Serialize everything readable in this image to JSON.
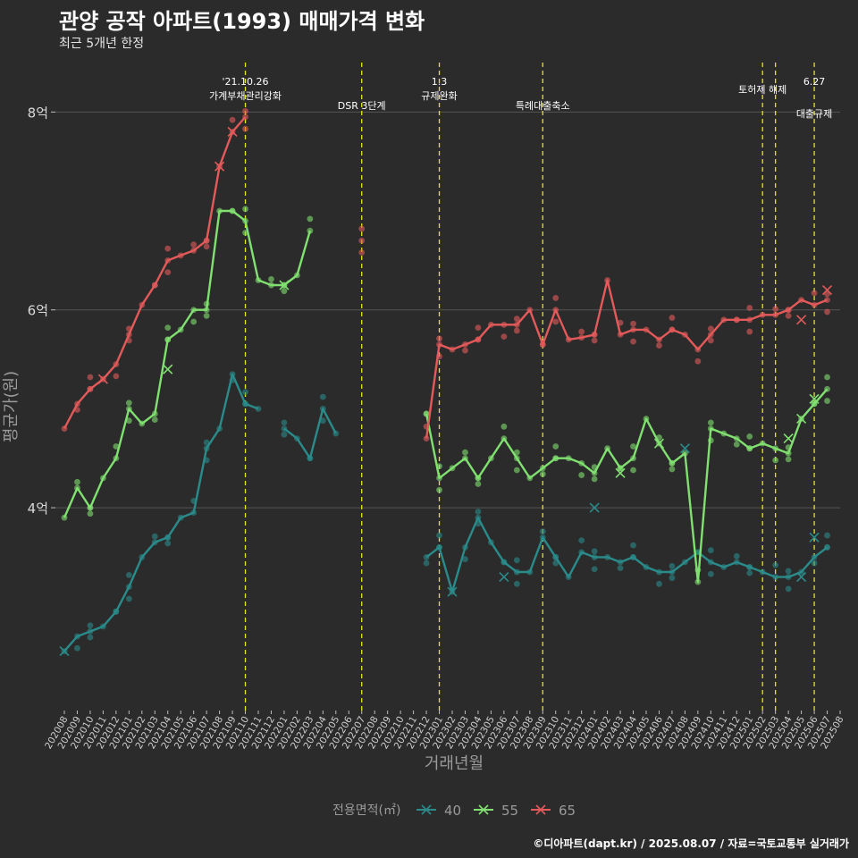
{
  "title": "관양 공작 아파트(1993) 매매가격 변화",
  "subtitle": "최근 5개년 한정",
  "caption": "©디아파트(dapt.kr) / 2025.08.07 / 자료=국토교통부 실거래가",
  "colors": {
    "background": "#2b2b2b",
    "grid": "#555555",
    "event_line": "#e6e619",
    "s40": "#2a8b8b",
    "s55": "#80e070",
    "s65": "#e45a5a"
  },
  "chart_data": {
    "type": "line",
    "xlabel": "거래년월",
    "ylabel": "평균가(원)",
    "ylim": [
      1.95,
      8.5
    ],
    "yticks": [
      {
        "v": 4,
        "label": "4억"
      },
      {
        "v": 6,
        "label": "6억"
      },
      {
        "v": 8,
        "label": "8억"
      }
    ],
    "x": [
      "202008",
      "202009",
      "202010",
      "202011",
      "202012",
      "202101",
      "202102",
      "202103",
      "202104",
      "202105",
      "202106",
      "202107",
      "202108",
      "202109",
      "202110",
      "202111",
      "202112",
      "202201",
      "202202",
      "202203",
      "202204",
      "202205",
      "202206",
      "202207",
      "202208",
      "202209",
      "202210",
      "202211",
      "202212",
      "202301",
      "202302",
      "202303",
      "202304",
      "202305",
      "202306",
      "202307",
      "202308",
      "202309",
      "202310",
      "202311",
      "202312",
      "202401",
      "202402",
      "202403",
      "202404",
      "202405",
      "202406",
      "202407",
      "202408",
      "202409",
      "202410",
      "202411",
      "202412",
      "202501",
      "202502",
      "202503",
      "202504",
      "202505",
      "202506",
      "202507",
      "202508"
    ],
    "legend_title": "전용면적(㎡)",
    "legend_position": "bottom",
    "series": [
      {
        "name": "40",
        "color_key": "s40",
        "values": [
          2.55,
          2.7,
          2.75,
          2.8,
          2.95,
          3.2,
          3.5,
          3.65,
          3.7,
          3.9,
          3.95,
          4.6,
          4.8,
          5.35,
          5.05,
          5.0,
          null,
          4.8,
          4.7,
          4.5,
          5.0,
          4.75,
          null,
          null,
          null,
          null,
          null,
          null,
          3.5,
          3.6,
          3.15,
          3.6,
          3.9,
          3.65,
          3.45,
          3.35,
          3.35,
          3.7,
          3.5,
          3.3,
          3.55,
          3.5,
          3.5,
          3.45,
          3.5,
          3.4,
          3.35,
          3.35,
          3.45,
          3.55,
          3.45,
          3.4,
          3.45,
          3.4,
          3.35,
          3.3,
          3.3,
          3.35,
          3.5,
          3.6,
          null
        ]
      },
      {
        "name": "55",
        "color_key": "s55",
        "values": [
          3.9,
          4.2,
          4.0,
          4.3,
          4.5,
          5.0,
          4.85,
          4.95,
          5.7,
          5.8,
          6.0,
          6.0,
          7.0,
          7.0,
          6.9,
          6.3,
          6.25,
          6.25,
          6.35,
          6.8,
          null,
          null,
          null,
          null,
          null,
          null,
          null,
          null,
          4.95,
          4.3,
          4.4,
          4.5,
          4.3,
          4.5,
          4.7,
          4.5,
          4.3,
          4.4,
          4.5,
          4.5,
          4.45,
          4.35,
          4.6,
          4.4,
          4.5,
          4.9,
          4.65,
          4.45,
          4.55,
          3.25,
          4.8,
          4.75,
          4.7,
          4.6,
          4.65,
          4.6,
          4.55,
          4.9,
          5.05,
          5.2,
          null
        ]
      },
      {
        "name": "65",
        "color_key": "s65",
        "values": [
          4.8,
          5.05,
          5.2,
          5.3,
          5.45,
          5.75,
          6.05,
          6.25,
          6.5,
          6.55,
          6.6,
          6.7,
          7.45,
          7.8,
          7.95,
          null,
          null,
          null,
          null,
          null,
          null,
          null,
          null,
          6.7,
          null,
          null,
          null,
          null,
          4.7,
          5.65,
          5.6,
          5.65,
          5.7,
          5.85,
          5.85,
          5.85,
          6.0,
          5.65,
          6.0,
          5.7,
          5.72,
          5.75,
          6.3,
          5.75,
          5.8,
          5.8,
          5.7,
          5.8,
          5.75,
          5.6,
          5.75,
          5.9,
          5.9,
          5.9,
          5.95,
          5.95,
          6.0,
          6.1,
          6.05,
          6.1,
          null
        ]
      }
    ],
    "events": [
      {
        "x": "202110",
        "label1": "'21.10.26",
        "label2": "가계부채관리강화"
      },
      {
        "x": "202207",
        "label1": "",
        "label2": "DSR 3단계"
      },
      {
        "x": "202301",
        "label1": "1.3",
        "label2": "규제완화"
      },
      {
        "x": "202309",
        "label1": "",
        "label2": "특례대출축소"
      },
      {
        "x": "202502",
        "label1": "토허제 해제",
        "label2": ""
      },
      {
        "x": "202503",
        "label1": "",
        "label2": ""
      },
      {
        "x": "202506",
        "label1": "6.27",
        "label2": "대출규제"
      }
    ],
    "crosses": [
      {
        "series": "40",
        "x": "202008",
        "y": 2.55
      },
      {
        "series": "40",
        "x": "202302",
        "y": 3.15
      },
      {
        "series": "40",
        "x": "202306",
        "y": 3.3
      },
      {
        "series": "40",
        "x": "202401",
        "y": 4.0
      },
      {
        "series": "40",
        "x": "202408",
        "y": 4.6
      },
      {
        "series": "40",
        "x": "202505",
        "y": 3.3
      },
      {
        "series": "40",
        "x": "202506",
        "y": 3.7
      },
      {
        "series": "55",
        "x": "202104",
        "y": 5.4
      },
      {
        "series": "55",
        "x": "202201",
        "y": 6.25
      },
      {
        "series": "55",
        "x": "202403",
        "y": 4.35
      },
      {
        "series": "55",
        "x": "202406",
        "y": 4.65
      },
      {
        "series": "55",
        "x": "202504",
        "y": 4.7
      },
      {
        "series": "55",
        "x": "202505",
        "y": 4.9
      },
      {
        "series": "55",
        "x": "202506",
        "y": 5.1
      },
      {
        "series": "65",
        "x": "202011",
        "y": 5.3
      },
      {
        "series": "65",
        "x": "202108",
        "y": 7.45
      },
      {
        "series": "65",
        "x": "202109",
        "y": 7.8
      },
      {
        "series": "65",
        "x": "202505",
        "y": 5.9
      },
      {
        "series": "65",
        "x": "202507",
        "y": 6.2
      }
    ]
  }
}
